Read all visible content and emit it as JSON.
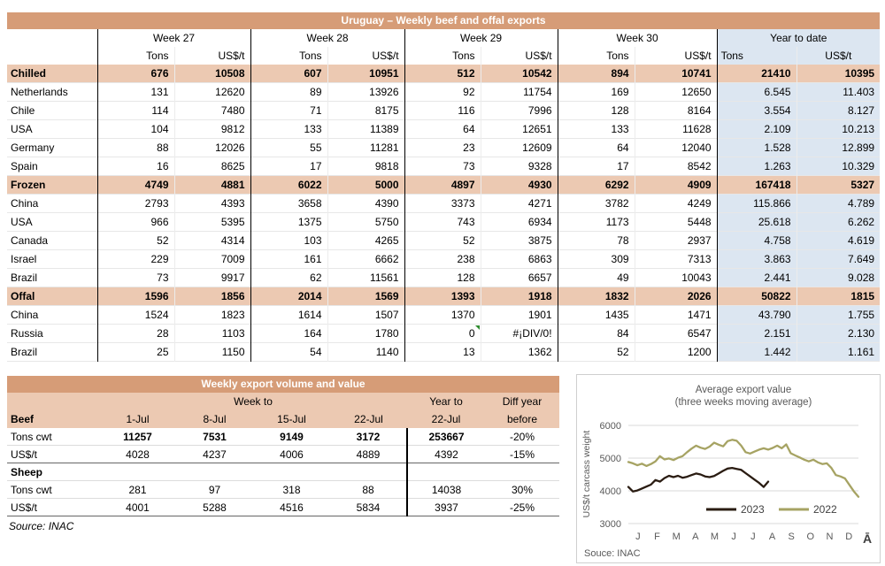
{
  "table1": {
    "title": "Uruguay – Weekly beef and offal exports",
    "col_groups": [
      "Week 27",
      "Week 28",
      "Week 29",
      "Week 30",
      "Year to date"
    ],
    "subheaders": [
      "Tons",
      "US$/t"
    ],
    "rows": [
      {
        "label": "Chilled",
        "type": "section",
        "values": [
          "676",
          "10508",
          "607",
          "10951",
          "512",
          "10542",
          "894",
          "10741",
          "21410",
          "10395"
        ]
      },
      {
        "label": "Netherlands",
        "type": "country",
        "values": [
          "131",
          "12620",
          "89",
          "13926",
          "92",
          "11754",
          "169",
          "12650",
          "6.545",
          "11.403"
        ]
      },
      {
        "label": "Chile",
        "type": "country",
        "values": [
          "114",
          "7480",
          "71",
          "8175",
          "116",
          "7996",
          "128",
          "8164",
          "3.554",
          "8.127"
        ]
      },
      {
        "label": "USA",
        "type": "country",
        "values": [
          "104",
          "9812",
          "133",
          "11389",
          "64",
          "12651",
          "133",
          "11628",
          "2.109",
          "10.213"
        ]
      },
      {
        "label": "Germany",
        "type": "country",
        "values": [
          "88",
          "12026",
          "55",
          "11281",
          "23",
          "12609",
          "64",
          "12040",
          "1.528",
          "12.899"
        ]
      },
      {
        "label": "Spain",
        "type": "country",
        "values": [
          "16",
          "8625",
          "17",
          "9818",
          "73",
          "9328",
          "17",
          "8542",
          "1.263",
          "10.329"
        ]
      },
      {
        "label": "Frozen",
        "type": "section",
        "values": [
          "4749",
          "4881",
          "6022",
          "5000",
          "4897",
          "4930",
          "6292",
          "4909",
          "167418",
          "5327"
        ]
      },
      {
        "label": "China",
        "type": "country",
        "values": [
          "2793",
          "4393",
          "3658",
          "4390",
          "3373",
          "4271",
          "3782",
          "4249",
          "115.866",
          "4.789"
        ]
      },
      {
        "label": "USA",
        "type": "country",
        "values": [
          "966",
          "5395",
          "1375",
          "5750",
          "743",
          "6934",
          "1173",
          "5448",
          "25.618",
          "6.262"
        ]
      },
      {
        "label": "Canada",
        "type": "country",
        "values": [
          "52",
          "4314",
          "103",
          "4265",
          "52",
          "3875",
          "78",
          "2937",
          "4.758",
          "4.619"
        ]
      },
      {
        "label": "Israel",
        "type": "country",
        "values": [
          "229",
          "7009",
          "161",
          "6662",
          "238",
          "6863",
          "309",
          "7313",
          "3.863",
          "7.649"
        ]
      },
      {
        "label": "Brazil",
        "type": "country",
        "values": [
          "73",
          "9917",
          "62",
          "11561",
          "128",
          "6657",
          "49",
          "10043",
          "2.441",
          "9.028"
        ]
      },
      {
        "label": "Offal",
        "type": "section",
        "values": [
          "1596",
          "1856",
          "2014",
          "1569",
          "1393",
          "1918",
          "1832",
          "2026",
          "50822",
          "1815"
        ]
      },
      {
        "label": "China",
        "type": "country",
        "values": [
          "1524",
          "1823",
          "1614",
          "1507",
          "1370",
          "1901",
          "1435",
          "1471",
          "43.790",
          "1.755"
        ]
      },
      {
        "label": "Russia",
        "type": "country",
        "flag_index": 4,
        "values": [
          "28",
          "1103",
          "164",
          "1780",
          "0",
          "#¡DIV/0!",
          "84",
          "6547",
          "2.151",
          "2.130"
        ]
      },
      {
        "label": "Brazil",
        "type": "country",
        "values": [
          "25",
          "1150",
          "54",
          "1140",
          "13",
          "1362",
          "52",
          "1200",
          "1.442",
          "1.161"
        ]
      }
    ]
  },
  "table2": {
    "title": "Weekly export volume and value",
    "week_to_label": "Week to",
    "year_to_label": "Year to",
    "diff_label_line1": "Diff year",
    "diff_label_line2": "before",
    "dates": [
      "1-Jul",
      "8-Jul",
      "15-Jul",
      "22-Jul"
    ],
    "ytd_date": "22-Jul",
    "sections": [
      {
        "label": "Beef",
        "rows": [
          {
            "label": "Tons cwt",
            "bold": true,
            "values": [
              "11257",
              "7531",
              "9149",
              "3172",
              "253667",
              "-20%"
            ]
          },
          {
            "label": "US$/t",
            "bold": false,
            "values": [
              "4028",
              "4237",
              "4006",
              "4889",
              "4392",
              "-15%"
            ]
          }
        ]
      },
      {
        "label": "Sheep",
        "rows": [
          {
            "label": "Tons cwt",
            "bold": false,
            "values": [
              "281",
              "97",
              "318",
              "88",
              "14038",
              "30%"
            ]
          },
          {
            "label": "US$/t",
            "bold": false,
            "values": [
              "4001",
              "5288",
              "4516",
              "5834",
              "3937",
              "-25%"
            ]
          }
        ]
      }
    ],
    "source": "Source: INAC"
  },
  "chart_data": {
    "type": "line",
    "title": "Average export value",
    "subtitle": "(three weeks moving average)",
    "ylabel": "US$/t carcass weight",
    "ylim": [
      3000,
      6000
    ],
    "yticks": [
      6000,
      5000,
      4000,
      3000
    ],
    "x_months": [
      "J",
      "F",
      "M",
      "A",
      "M",
      "J",
      "J",
      "A",
      "S",
      "O",
      "N",
      "D"
    ],
    "x_extra": "Ā",
    "x_unit": "week of year",
    "grid": true,
    "legend_position": "bottom-right-inside",
    "source": "Souce: INAC",
    "series": [
      {
        "name": "2023",
        "color": "#2a1c12",
        "values": [
          4120,
          3980,
          4010,
          4070,
          4130,
          4190,
          4330,
          4280,
          4390,
          4460,
          4420,
          4460,
          4400,
          4430,
          4480,
          4530,
          4500,
          4440,
          4420,
          4450,
          4530,
          4610,
          4680,
          4700,
          4670,
          4640,
          4540,
          4440,
          4340,
          4240,
          4120,
          4280
        ]
      },
      {
        "name": "2022",
        "color": "#a6a363",
        "values": [
          4880,
          4840,
          4780,
          4830,
          4760,
          4820,
          4900,
          5060,
          4960,
          4990,
          4940,
          5010,
          5060,
          5180,
          5290,
          5380,
          5320,
          5280,
          5350,
          5470,
          5410,
          5360,
          5520,
          5560,
          5530,
          5380,
          5180,
          5140,
          5200,
          5260,
          5300,
          5260,
          5310,
          5380,
          5300,
          5420,
          5150,
          5080,
          5020,
          4950,
          4900,
          4950,
          4870,
          4820,
          4840,
          4700,
          4480,
          4440,
          4380,
          4180,
          3980,
          3820
        ]
      }
    ]
  }
}
